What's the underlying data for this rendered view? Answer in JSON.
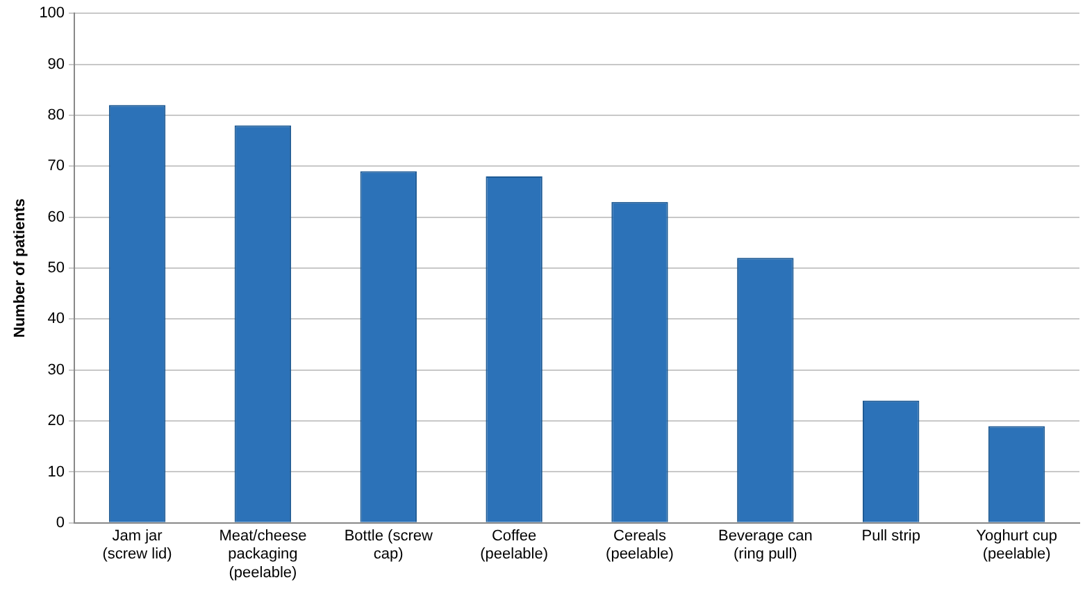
{
  "chart_data": {
    "type": "bar",
    "ylabel": "Number of patients",
    "categories": [
      "Jam jar (screw lid)",
      "Meat/cheese packaging (peelable)",
      "Bottle (screw cap)",
      "Coffee (peelable)",
      "Cereals (peelable)",
      "Beverage can (ring pull)",
      "Pull strip",
      "Yoghurt cup (peelable)"
    ],
    "values": [
      82,
      78,
      69,
      68,
      63,
      52,
      24,
      19
    ],
    "color": "#2c72b8",
    "ylim": [
      0,
      100
    ],
    "yticks": [
      0,
      10,
      20,
      30,
      40,
      50,
      60,
      70,
      80,
      90,
      100
    ],
    "grid": "y",
    "legend": false
  }
}
